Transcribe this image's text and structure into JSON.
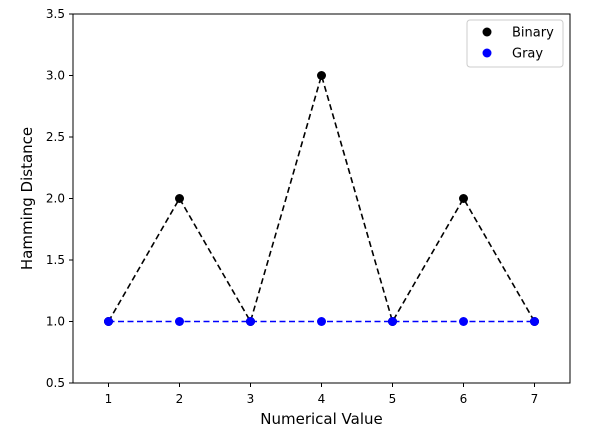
{
  "chart_data": {
    "type": "line",
    "xlabel": "Numerical Value",
    "ylabel": "Hamming Distance",
    "x": [
      1,
      2,
      3,
      4,
      5,
      6,
      7
    ],
    "xlim": [
      0.5,
      7.5
    ],
    "ylim": [
      0.5,
      3.5
    ],
    "xticks": [
      1,
      2,
      3,
      4,
      5,
      6,
      7
    ],
    "yticks": [
      "0.5",
      "1.0",
      "1.5",
      "2.0",
      "2.5",
      "3.0",
      "3.5"
    ],
    "grid": false,
    "legend_position": "top-right",
    "line_style": "dashed",
    "series": [
      {
        "name": "Binary",
        "values": [
          1,
          2,
          1,
          3,
          1,
          2,
          1
        ],
        "marker_color": "#000000",
        "line_color": "#000000"
      },
      {
        "name": "Gray",
        "values": [
          1,
          1,
          1,
          1,
          1,
          1,
          1
        ],
        "marker_color": "#0000ff",
        "line_color": "#0000ff"
      }
    ]
  }
}
